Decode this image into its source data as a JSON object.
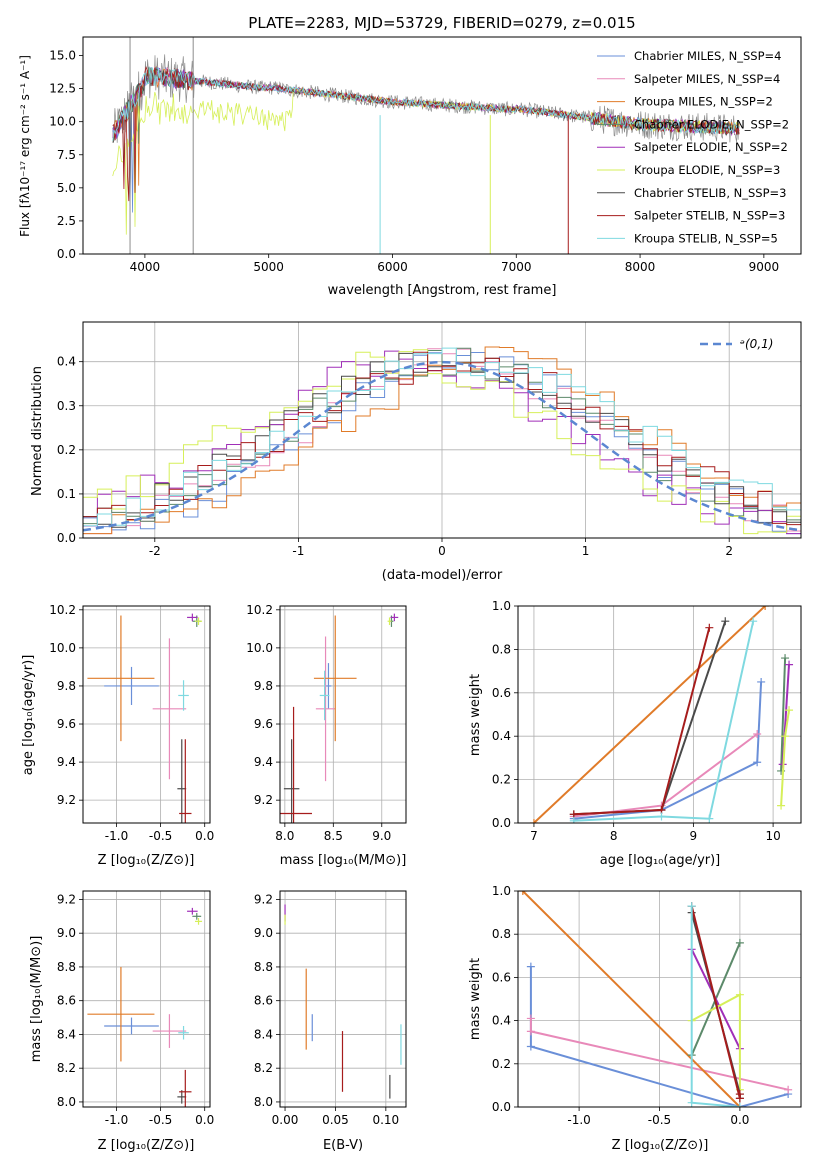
{
  "colors": {
    "cMiles": "#6a8fd8",
    "sMiles": "#e889b9",
    "kMiles": "#e07b29",
    "cElodie": "#5c8a6a",
    "sElodie": "#a02fb8",
    "kElodie": "#d6ef59",
    "cStelib": "#4a4a4a",
    "sStelib": "#a61c1c",
    "kStelib": "#7fd9e0",
    "gray": "#8c8c8c",
    "normal": "#5b87d1"
  },
  "chart_data": [
    {
      "id": "spectrum",
      "type": "line",
      "title": "PLATE=2283, MJD=53729, FIBERID=0279, z=0.015",
      "xlabel": "wavelength [Angstrom, rest frame]",
      "ylabel": "Flux [fλ10⁻¹⁷ erg cm⁻² s⁻¹ A⁻¹]",
      "xlim": [
        3500,
        9300
      ],
      "ylim": [
        0,
        16.4
      ],
      "xticks": [
        4000,
        5000,
        6000,
        7000,
        8000,
        9000
      ],
      "yticks": [
        0.0,
        2.5,
        5.0,
        7.5,
        10.0,
        12.5,
        15.0
      ],
      "legend_position": "upper right",
      "series": [
        {
          "name": "Chabrier MILES, N_SSP=4",
          "color": "#6a8fd8"
        },
        {
          "name": "Salpeter MILES, N_SSP=4",
          "color": "#e889b9"
        },
        {
          "name": "Kroupa MILES, N_SSP=2",
          "color": "#e07b29"
        },
        {
          "name": "Chabrier ELODIE, N_SSP=2",
          "color": "#5c8a6a"
        },
        {
          "name": "Salpeter ELODIE, N_SSP=2",
          "color": "#a02fb8"
        },
        {
          "name": "Kroupa ELODIE, N_SSP=3",
          "color": "#d6ef59"
        },
        {
          "name": "Chabrier STELIB, N_SSP=3",
          "color": "#4a4a4a"
        },
        {
          "name": "Salpeter STELIB, N_SSP=3",
          "color": "#a61c1c"
        },
        {
          "name": "Kroupa STELIB, N_SSP=5",
          "color": "#7fd9e0"
        }
      ],
      "spikes": [
        {
          "x": 3880,
          "top": 16.4,
          "color": "#8c8c8c"
        },
        {
          "x": 4390,
          "top": 16.4,
          "color": "#8c8c8c"
        },
        {
          "x": 5900,
          "top": 10.5,
          "color": "#7fd9e0"
        },
        {
          "x": 6790,
          "top": 10.5,
          "color": "#d6ef59"
        },
        {
          "x": 7420,
          "top": 10.5,
          "color": "#a61c1c"
        }
      ]
    },
    {
      "id": "residuals",
      "type": "line",
      "xlabel": "(data-model)/error",
      "ylabel": "Normed distribution",
      "xlim": [
        -2.5,
        2.5
      ],
      "ylim": [
        0.0,
        0.49
      ],
      "xticks": [
        -2,
        -1,
        0,
        1,
        2
      ],
      "yticks": [
        0.0,
        0.1,
        0.2,
        0.3,
        0.4
      ],
      "legend": "ᵊ(0,1)",
      "legend_position": "upper right",
      "normal_curve": {
        "mean": 0,
        "sigma": 1,
        "style": "dashed"
      }
    },
    {
      "id": "age-vs-Z",
      "type": "scatter",
      "xlabel": "Z [log₁₀(Z/Z⊙)]",
      "ylabel": "age  [log₁₀(age/yr)]",
      "xlim": [
        -1.38,
        0.06
      ],
      "ylim": [
        9.08,
        10.22
      ],
      "xticks": [
        -1.0,
        -0.5,
        0.0
      ],
      "yticks": [
        9.2,
        9.4,
        9.6,
        9.8,
        10.0,
        10.2
      ],
      "points": [
        {
          "x": -0.83,
          "xerr": 0.31,
          "y": 9.8,
          "yerr": 0.1,
          "color": "#6a8fd8"
        },
        {
          "x": -0.4,
          "xerr": 0.19,
          "y": 9.68,
          "yerr": 0.37,
          "color": "#e889b9"
        },
        {
          "x": -0.95,
          "xerr": 0.38,
          "y": 9.84,
          "yerr": 0.33,
          "color": "#e07b29"
        },
        {
          "x": -0.09,
          "xerr": 0.05,
          "y": 10.14,
          "yerr": 0.03,
          "color": "#5c8a6a"
        },
        {
          "x": -0.14,
          "xerr": 0.06,
          "y": 10.16,
          "yerr": 0.02,
          "color": "#a02fb8"
        },
        {
          "x": -0.07,
          "xerr": 0.04,
          "y": 10.14,
          "yerr": 0.02,
          "color": "#d6ef59"
        },
        {
          "x": -0.26,
          "xerr": 0.05,
          "y": 9.26,
          "yerr": 0.26,
          "color": "#4a4a4a"
        },
        {
          "x": -0.22,
          "xerr": 0.07,
          "y": 9.13,
          "yerr": 0.39,
          "color": "#a61c1c"
        },
        {
          "x": -0.24,
          "xerr": 0.06,
          "y": 9.75,
          "yerr": 0.08,
          "color": "#7fd9e0"
        }
      ]
    },
    {
      "id": "age-vs-mass",
      "type": "scatter",
      "xlabel": "mass [log₁₀(M/M⊙)]",
      "xlim": [
        7.95,
        9.25
      ],
      "ylim": [
        9.08,
        10.22
      ],
      "xticks": [
        8.0,
        8.5,
        9.0
      ],
      "yticks": [
        9.2,
        9.4,
        9.6,
        9.8,
        10.0,
        10.2
      ],
      "points": [
        {
          "x": 8.45,
          "xerr": 0.03,
          "y": 9.8,
          "yerr": 0.12,
          "color": "#6a8fd8"
        },
        {
          "x": 8.42,
          "xerr": 0.1,
          "y": 9.68,
          "yerr": 0.38,
          "color": "#e889b9"
        },
        {
          "x": 8.52,
          "xerr": 0.22,
          "y": 9.84,
          "yerr": 0.33,
          "color": "#e07b29"
        },
        {
          "x": 9.1,
          "xerr": 0.02,
          "y": 10.14,
          "yerr": 0.03,
          "color": "#5c8a6a"
        },
        {
          "x": 9.13,
          "xerr": 0.04,
          "y": 10.16,
          "yerr": 0.02,
          "color": "#a02fb8"
        },
        {
          "x": 9.08,
          "xerr": 0.02,
          "y": 10.14,
          "yerr": 0.02,
          "color": "#d6ef59"
        },
        {
          "x": 8.07,
          "xerr": 0.08,
          "y": 9.26,
          "yerr": 0.26,
          "color": "#4a4a4a"
        },
        {
          "x": 8.09,
          "xerr": 0.19,
          "y": 9.13,
          "yerr": 0.56,
          "color": "#a61c1c"
        },
        {
          "x": 8.41,
          "xerr": 0.05,
          "y": 9.75,
          "yerr": 0.13,
          "color": "#7fd9e0"
        }
      ]
    },
    {
      "id": "weight-vs-age",
      "type": "line",
      "xlabel": "age  [log₁₀(age/yr)]",
      "ylabel": "mass weight",
      "xlim": [
        6.8,
        10.35
      ],
      "ylim": [
        0.0,
        1.0
      ],
      "xticks": [
        7,
        8,
        9,
        10
      ],
      "yticks": [
        0.0,
        0.2,
        0.4,
        0.6,
        0.8,
        1.0
      ],
      "series": [
        {
          "color": "#6a8fd8",
          "x": [
            7.5,
            8.6,
            9.8,
            9.85
          ],
          "y": [
            0.02,
            0.06,
            0.28,
            0.65
          ]
        },
        {
          "color": "#e889b9",
          "x": [
            7.5,
            8.6,
            9.8
          ],
          "y": [
            0.03,
            0.08,
            0.41
          ]
        },
        {
          "color": "#e07b29",
          "x": [
            7.0,
            9.9
          ],
          "y": [
            0.0,
            1.0
          ]
        },
        {
          "color": "#5c8a6a",
          "x": [
            10.1,
            10.15
          ],
          "y": [
            0.24,
            0.76
          ]
        },
        {
          "color": "#a02fb8",
          "x": [
            10.12,
            10.2
          ],
          "y": [
            0.27,
            0.73
          ]
        },
        {
          "color": "#d6ef59",
          "x": [
            10.1,
            10.15,
            10.2
          ],
          "y": [
            0.08,
            0.4,
            0.52
          ]
        },
        {
          "color": "#4a4a4a",
          "x": [
            7.5,
            8.6,
            9.4
          ],
          "y": [
            0.04,
            0.06,
            0.93
          ]
        },
        {
          "color": "#a61c1c",
          "x": [
            7.5,
            8.6,
            9.2
          ],
          "y": [
            0.04,
            0.06,
            0.9
          ]
        },
        {
          "color": "#7fd9e0",
          "x": [
            7.5,
            8.6,
            9.2,
            9.75
          ],
          "y": [
            0.01,
            0.03,
            0.02,
            0.93
          ]
        }
      ]
    },
    {
      "id": "mass-vs-Z",
      "type": "scatter",
      "xlabel": "Z [log₁₀(Z/Z⊙)]",
      "ylabel": "mass [log₁₀(M/M⊙)]",
      "xlim": [
        -1.38,
        0.06
      ],
      "ylim": [
        7.97,
        9.25
      ],
      "xticks": [
        -1.0,
        -0.5,
        0.0
      ],
      "yticks": [
        8.0,
        8.2,
        8.4,
        8.6,
        8.8,
        9.0,
        9.2
      ],
      "points": [
        {
          "x": -0.83,
          "xerr": 0.31,
          "y": 8.45,
          "yerr": 0.05,
          "color": "#6a8fd8"
        },
        {
          "x": -0.4,
          "xerr": 0.19,
          "y": 8.42,
          "yerr": 0.1,
          "color": "#e889b9"
        },
        {
          "x": -0.95,
          "xerr": 0.38,
          "y": 8.52,
          "yerr": 0.28,
          "color": "#e07b29"
        },
        {
          "x": -0.09,
          "xerr": 0.05,
          "y": 9.1,
          "yerr": 0.02,
          "color": "#5c8a6a"
        },
        {
          "x": -0.14,
          "xerr": 0.06,
          "y": 9.13,
          "yerr": 0.02,
          "color": "#a02fb8"
        },
        {
          "x": -0.07,
          "xerr": 0.04,
          "y": 9.07,
          "yerr": 0.02,
          "color": "#d6ef59"
        },
        {
          "x": -0.26,
          "xerr": 0.05,
          "y": 8.03,
          "yerr": 0.04,
          "color": "#4a4a4a"
        },
        {
          "x": -0.22,
          "xerr": 0.07,
          "y": 8.06,
          "yerr": 0.13,
          "color": "#a61c1c"
        },
        {
          "x": -0.24,
          "xerr": 0.06,
          "y": 8.41,
          "yerr": 0.04,
          "color": "#7fd9e0"
        }
      ]
    },
    {
      "id": "mass-vs-ebv",
      "type": "scatter",
      "xlabel": "E(B-V)",
      "xlim": [
        -0.005,
        0.12
      ],
      "ylim": [
        7.97,
        9.25
      ],
      "xticks": [
        0.0,
        0.05,
        0.1
      ],
      "yticks": [
        8.0,
        8.2,
        8.4,
        8.6,
        8.8,
        9.0,
        9.2
      ],
      "points": [
        {
          "x": 0.027,
          "y": 8.44,
          "yerr": 0.08,
          "color": "#6a8fd8"
        },
        {
          "x": 0.021,
          "y": 8.55,
          "yerr": 0.24,
          "color": "#e07b29"
        },
        {
          "x": 0.0,
          "y": 9.12,
          "yerr": 0.05,
          "color": "#a02fb8"
        },
        {
          "x": 0.0,
          "y": 9.08,
          "yerr": 0.03,
          "color": "#d6ef59"
        },
        {
          "x": 0.057,
          "y": 8.24,
          "yerr": 0.18,
          "color": "#a61c1c"
        },
        {
          "x": 0.104,
          "y": 8.09,
          "yerr": 0.07,
          "color": "#4a4a4a"
        },
        {
          "x": 0.115,
          "y": 8.34,
          "yerr": 0.12,
          "color": "#7fd9e0"
        }
      ]
    },
    {
      "id": "weight-vs-Z",
      "type": "line",
      "xlabel": "Z [log₁₀(Z/Z⊙)]",
      "ylabel": "mass weight",
      "xlim": [
        -1.38,
        0.38
      ],
      "ylim": [
        0.0,
        1.0
      ],
      "xticks": [
        -1.0,
        -0.5,
        0.0
      ],
      "yticks": [
        0.0,
        0.2,
        0.4,
        0.6,
        0.8,
        1.0
      ],
      "series": [
        {
          "color": "#6a8fd8",
          "x": [
            -1.3,
            -1.3,
            0.0,
            0.3
          ],
          "y": [
            0.65,
            0.28,
            0.0,
            0.06
          ]
        },
        {
          "color": "#e889b9",
          "x": [
            -1.3,
            -1.3,
            0.3
          ],
          "y": [
            0.41,
            0.35,
            0.08
          ]
        },
        {
          "color": "#e07b29",
          "x": [
            -1.35,
            0.0
          ],
          "y": [
            1.0,
            0.0
          ]
        },
        {
          "color": "#5c8a6a",
          "x": [
            -0.3,
            0.0
          ],
          "y": [
            0.24,
            0.76
          ]
        },
        {
          "color": "#a02fb8",
          "x": [
            -0.3,
            0.0
          ],
          "y": [
            0.73,
            0.27
          ]
        },
        {
          "color": "#d6ef59",
          "x": [
            -0.3,
            0.0,
            0.0
          ],
          "y": [
            0.4,
            0.52,
            0.08
          ]
        },
        {
          "color": "#4a4a4a",
          "x": [
            -0.3,
            0.0,
            0.0
          ],
          "y": [
            0.9,
            0.06,
            0.04
          ]
        },
        {
          "color": "#a61c1c",
          "x": [
            -0.3,
            0.0,
            0.0
          ],
          "y": [
            0.93,
            0.04,
            0.06
          ]
        },
        {
          "color": "#7fd9e0",
          "x": [
            -0.3,
            -0.3,
            0.0
          ],
          "y": [
            0.93,
            0.02,
            0.0
          ]
        }
      ]
    }
  ]
}
